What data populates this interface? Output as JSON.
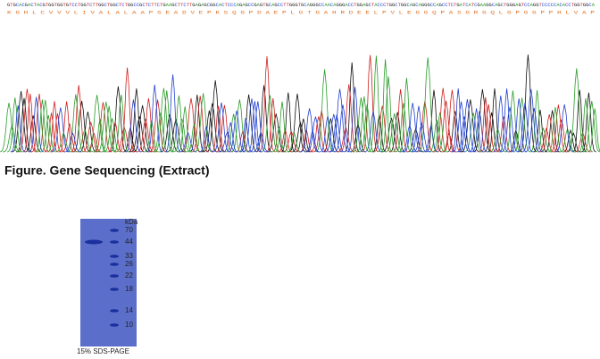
{
  "sequence": {
    "bases": "GTGCACGACTACGTGGTGGTGTCCTGGTCTTGGCTGGCTCTGGCCGCTCTTCTGAAGCTTCTTGAGAGCGGCACTCCCAGAGCCGAGTGCAGCCTTGGGTGCAGGGCCAACAGGGACCTGGAGCTACCCTGGCTGGCAGCAGGGCCAGCCTCTGATCATCGAAGGCAGCTGGGAGTCCAGGTCCCCCACACCTGGTGGCA",
    "residues": "K G H L C V V V L I V A L A L A A P S E A D V E P K S Q G P D A E P L G T G A H R D E E L P V L E G G Q P A S G R G Q L G P G G P P H L V A P"
  },
  "caption": "Figure. Gene Sequencing (Extract)",
  "gel": {
    "unit": "kDa",
    "markers": [
      "70",
      "44",
      "33",
      "26",
      "22",
      "18",
      "14",
      "10"
    ],
    "label": "15% SDS-PAGE"
  }
}
